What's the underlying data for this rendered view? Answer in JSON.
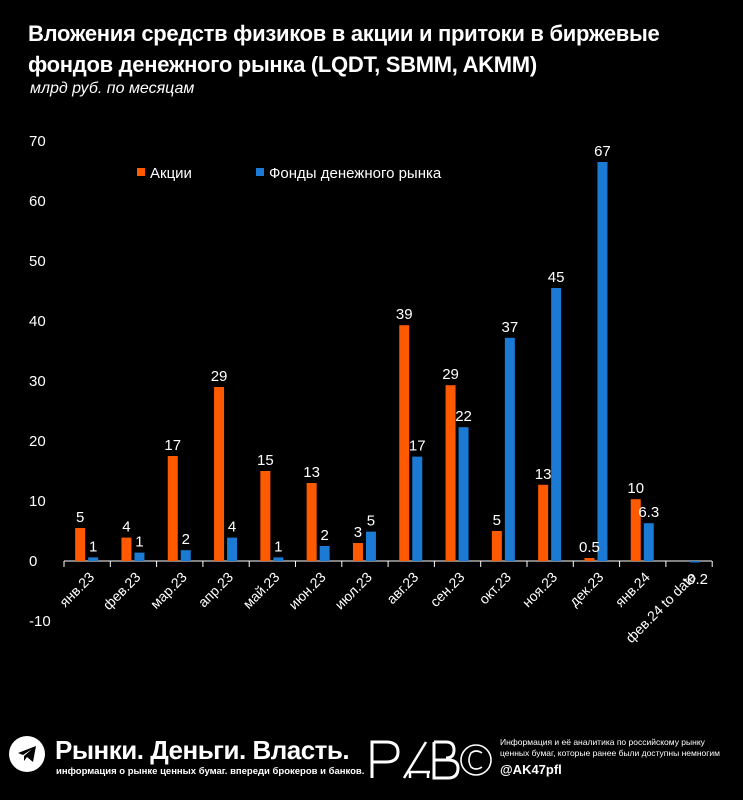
{
  "header": {
    "title": "Вложения средств физиков в акции и притоки в биржевые фондов денежного рынка (LQDT, SBMM, AKMM)",
    "subtitle": "млрд руб. по месяцам"
  },
  "chart_data": {
    "type": "bar",
    "categories": [
      "янв.23",
      "фев.23",
      "мар.23",
      "апр.23",
      "май.23",
      "июн.23",
      "июл.23",
      "авг.23",
      "сен.23",
      "окт.23",
      "ноя.23",
      "дек.23",
      "янв.24",
      "фев.24 to date"
    ],
    "series": [
      {
        "name": "Акции",
        "color": "#ff5a00",
        "values": [
          5.5,
          3.9,
          17.5,
          29,
          15,
          13,
          3,
          39.3,
          29.3,
          5,
          12.7,
          0.5,
          10.3,
          null
        ],
        "labels": [
          "5",
          "4",
          "17",
          "29",
          "15",
          "13",
          "3",
          "39",
          "29",
          "5",
          "13",
          "0.5",
          "10",
          ""
        ]
      },
      {
        "name": "Фонды денежного рынка",
        "color": "#1a7ad4",
        "values": [
          0.6,
          1.4,
          1.8,
          3.9,
          0.6,
          2.5,
          4.9,
          17.4,
          22.3,
          37.2,
          45.5,
          66.5,
          6.3,
          -0.2
        ],
        "labels": [
          "1",
          "1",
          "2",
          "4",
          "1",
          "2",
          "5",
          "17",
          "22",
          "37",
          "45",
          "67",
          "6.3",
          "-0.2"
        ]
      }
    ],
    "yticks": [
      "70",
      "60",
      "50",
      "40",
      "30",
      "20",
      "10",
      "0",
      "-10"
    ],
    "ylim": [
      -10,
      70
    ],
    "grid": false,
    "legend_position": "top-left"
  },
  "footer": {
    "logo_icon": "telegram-icon",
    "brand_name": "Рынки. Деньги. Власть.",
    "brand_tagline": "информация о рынке ценных бумаг. впереди брокеров и банков.",
    "brand_mark": "РДВ",
    "info_text": "Информация и её аналитика по российскому рынку ценных бумаг, которые ранее были доступны немногим",
    "handle": "@AK47pfl"
  }
}
